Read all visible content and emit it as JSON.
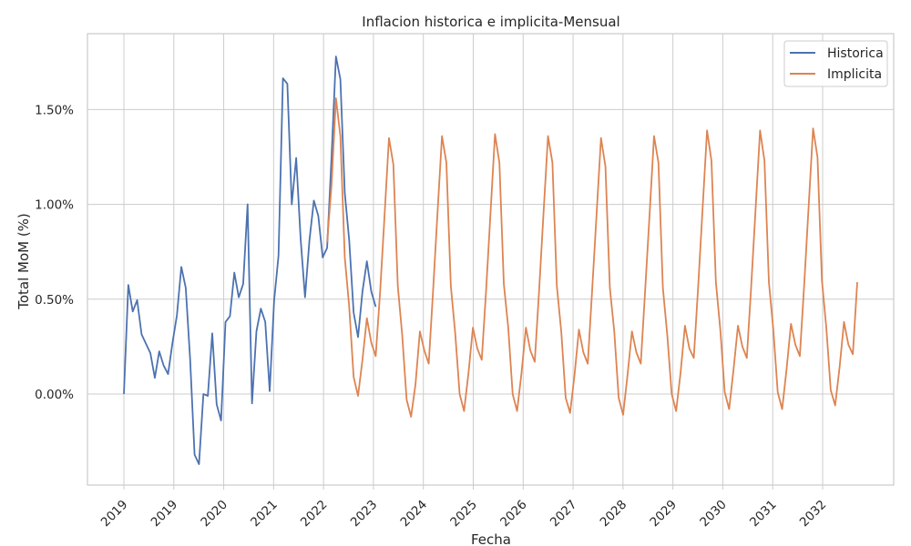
{
  "chart_data": {
    "type": "line",
    "title": "Inflacion historica e implicita-Mensual",
    "xlabel": "Fecha",
    "ylabel": "Total MoM (%)",
    "ylim": [
      -0.0048,
      0.019
    ],
    "grid": true,
    "legend_position": "top-right",
    "x_tick_labels": [
      "2019",
      "2019",
      "2020",
      "2021",
      "2022",
      "2023",
      "2024",
      "2025",
      "2026",
      "2027",
      "2028",
      "2029",
      "2030",
      "2031",
      "2032"
    ],
    "y_ticks": [
      0.0,
      0.005,
      0.01,
      0.015
    ],
    "y_tick_labels": [
      "0.00%",
      "0.50%",
      "1.00%",
      "1.50%"
    ],
    "x_start": "2019-01",
    "series": [
      {
        "name": "Historica",
        "color": "#4c72b0",
        "start": "2019-01",
        "values": [
          0.0,
          0.00575,
          0.00435,
          0.00495,
          0.00315,
          0.00265,
          0.00215,
          0.00085,
          0.00225,
          0.0015,
          0.00105,
          0.0027,
          0.00415,
          0.0067,
          0.0056,
          0.0018,
          -0.0032,
          -0.0037,
          0.0,
          -0.0001,
          0.0032,
          -0.00055,
          -0.0014,
          0.0038,
          0.0041,
          0.0064,
          0.0051,
          0.0058,
          0.01,
          -0.0005,
          0.0033,
          0.0045,
          0.0038,
          0.00015,
          0.0049,
          0.0073,
          0.01665,
          0.01635,
          0.01,
          0.01245,
          0.0082,
          0.0051,
          0.0081,
          0.0102,
          0.0094,
          0.0072,
          0.0077,
          0.0125,
          0.0178,
          0.0166,
          0.0106,
          0.0081,
          0.0043,
          0.003,
          0.0054,
          0.007,
          0.0054,
          0.0046
        ]
      },
      {
        "name": "Implicita",
        "color": "#dd8452",
        "start": "2022-11",
        "values": [
          0.008,
          0.011,
          0.0156,
          0.0136,
          0.0072,
          0.0046,
          0.0009,
          -0.0001,
          0.0018,
          0.004,
          0.0027,
          0.002,
          0.0054,
          0.0094,
          0.0135,
          0.0121,
          0.0057,
          0.0031,
          -0.0003,
          -0.0012,
          0.0005,
          0.0033,
          0.0023,
          0.0016,
          0.0055,
          0.0096,
          0.0136,
          0.0122,
          0.0057,
          0.0032,
          0.0,
          -0.0009,
          0.0011,
          0.0035,
          0.0024,
          0.0018,
          0.0055,
          0.0096,
          0.0137,
          0.0122,
          0.0058,
          0.0035,
          0.0,
          -0.0009,
          0.0011,
          0.0035,
          0.0023,
          0.0017,
          0.0055,
          0.0096,
          0.0136,
          0.0122,
          0.0057,
          0.0033,
          -0.0002,
          -0.001,
          0.001,
          0.0034,
          0.0022,
          0.0016,
          0.0055,
          0.0095,
          0.0135,
          0.012,
          0.0056,
          0.0033,
          -0.0002,
          -0.0011,
          0.001,
          0.0033,
          0.0022,
          0.0016,
          0.0055,
          0.0095,
          0.0136,
          0.0122,
          0.0056,
          0.0031,
          0.0,
          -0.0009,
          0.0011,
          0.0036,
          0.0024,
          0.0019,
          0.0057,
          0.0098,
          0.0139,
          0.0123,
          0.0059,
          0.0034,
          0.0001,
          -0.0008,
          0.0013,
          0.0036,
          0.0025,
          0.0019,
          0.0057,
          0.0098,
          0.0139,
          0.0123,
          0.0059,
          0.0034,
          0.0001,
          -0.0008,
          0.0013,
          0.0037,
          0.0026,
          0.002,
          0.0058,
          0.0099,
          0.014,
          0.0125,
          0.006,
          0.0035,
          0.0002,
          -0.0006,
          0.0014,
          0.0038,
          0.0026,
          0.0021,
          0.0059
        ]
      }
    ]
  }
}
